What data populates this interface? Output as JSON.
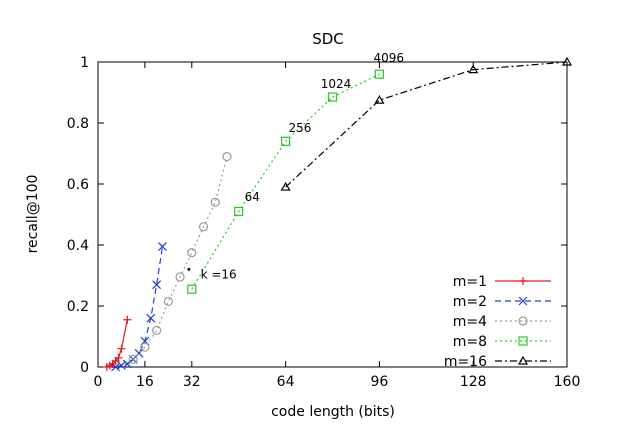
{
  "chart_data": {
    "type": "line",
    "title": "SDC",
    "xlabel": "code length (bits)",
    "ylabel": "recall@100",
    "xlim": [
      0,
      160
    ],
    "ylim": [
      0,
      1
    ],
    "xticks": [
      0,
      16,
      32,
      64,
      96,
      128,
      160
    ],
    "yticks": [
      0,
      0.2,
      0.4,
      0.6,
      0.8,
      1
    ],
    "ytick_labels": [
      "0",
      "0.2",
      "0.4",
      "0.6",
      "0.8",
      "1"
    ],
    "grid": false,
    "legend_position": "bottom-right",
    "series": [
      {
        "name": "m=1",
        "color": "#e41a1c",
        "dash": "solid",
        "marker": "plus",
        "x": [
          3,
          4,
          5,
          6,
          7,
          8,
          10
        ],
        "y": [
          0.0,
          0.005,
          0.01,
          0.02,
          0.03,
          0.06,
          0.155
        ]
      },
      {
        "name": "m=2",
        "color": "#1f3fd0",
        "dash": "dashed",
        "marker": "cross",
        "x": [
          6,
          8,
          10,
          12,
          14,
          16,
          18,
          20,
          22
        ],
        "y": [
          0.0,
          0.005,
          0.01,
          0.025,
          0.045,
          0.085,
          0.16,
          0.27,
          0.395
        ]
      },
      {
        "name": "m=4",
        "color": "#999999",
        "dash": "dotted",
        "marker": "circle",
        "x": [
          12,
          16,
          20,
          24,
          28,
          32,
          36,
          40,
          44
        ],
        "y": [
          0.025,
          0.065,
          0.12,
          0.215,
          0.295,
          0.375,
          0.46,
          0.54,
          0.69
        ]
      },
      {
        "name": "m=8",
        "color": "#22cc22",
        "dash": "dotted",
        "marker": "square",
        "x": [
          32,
          48,
          64,
          80,
          96
        ],
        "y": [
          0.255,
          0.51,
          0.74,
          0.885,
          0.96
        ]
      },
      {
        "name": "m=16",
        "color": "#000000",
        "dash": "dashdot",
        "marker": "triangle",
        "x": [
          64,
          96,
          128,
          160
        ],
        "y": [
          0.59,
          0.875,
          0.975,
          1.0
        ]
      }
    ],
    "annotations": [
      {
        "text": "k =16",
        "x": 35,
        "y": 0.29
      },
      {
        "text": "64",
        "x": 50,
        "y": 0.545
      },
      {
        "text": "256",
        "x": 65,
        "y": 0.77
      },
      {
        "text": "1024",
        "x": 76,
        "y": 0.915
      },
      {
        "text": "4096",
        "x": 94,
        "y": 1.0
      }
    ],
    "point_markers": [
      {
        "x": 31,
        "y": 0.32
      }
    ]
  }
}
